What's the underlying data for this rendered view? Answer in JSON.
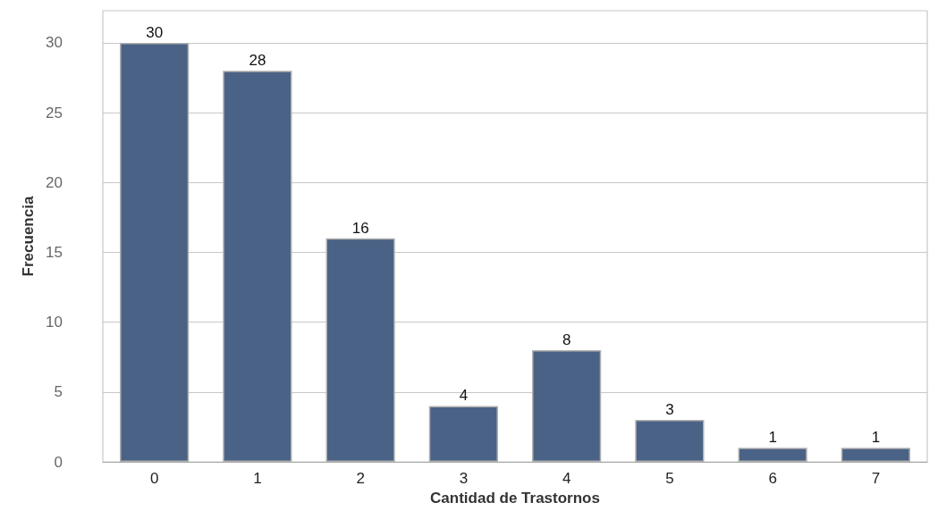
{
  "chart_data": {
    "type": "bar",
    "xlabel": "Cantidad de Trastornos",
    "ylabel": "Frecuencia",
    "categories": [
      "0",
      "1",
      "2",
      "3",
      "4",
      "5",
      "6",
      "7"
    ],
    "values": [
      30,
      28,
      16,
      4,
      8,
      3,
      1,
      1
    ],
    "color": "#4a6285",
    "ylim": [
      0,
      32.3
    ],
    "yticks": [
      0,
      5,
      10,
      15,
      20,
      25,
      30
    ],
    "grid": "y",
    "data_labels": true
  }
}
